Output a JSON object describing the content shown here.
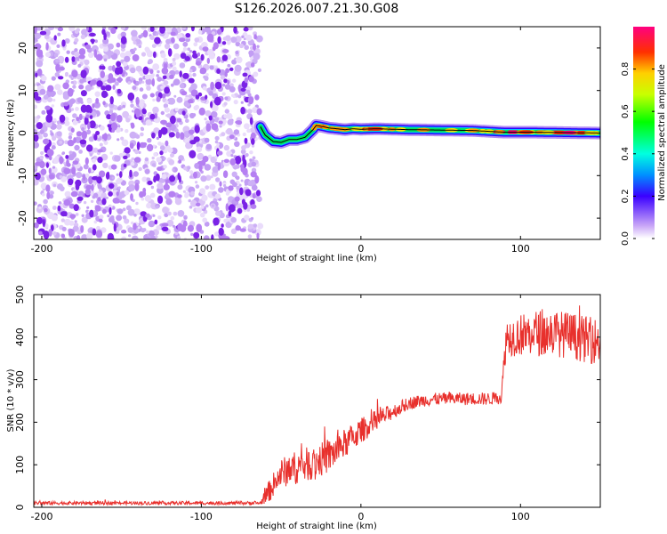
{
  "title": "S126.2026.007.21.30.G08",
  "colors": {
    "snr_line": "#e8302c",
    "signal_ridge": "#000000",
    "noise_dot": "#b580f2",
    "noise_dot_dark": "#7a22e6"
  },
  "chart_data": [
    {
      "type": "heatmap",
      "name": "spectrogram",
      "xlabel": "Height of straight line (km)",
      "ylabel": "Frequency (Hz)",
      "xlim": [
        -205,
        150
      ],
      "ylim": [
        -25,
        25
      ],
      "xticks": [
        -200,
        -100,
        0,
        100
      ],
      "xtick_labels": [
        "-200",
        "-100",
        "0",
        "100"
      ],
      "yticks": [
        -20,
        -10,
        0,
        10,
        20
      ],
      "ytick_labels": [
        "-20",
        "-10",
        "0",
        "10",
        "20"
      ],
      "noise_region_x": [
        -205,
        -63
      ],
      "signal_track": {
        "x": [
          -63,
          -60,
          -55,
          -50,
          -45,
          -40,
          -35,
          -30,
          -28,
          -25,
          -20,
          -15,
          -10,
          -5,
          0,
          10,
          20,
          30,
          50,
          70,
          90,
          110,
          130,
          150
        ],
        "freq": [
          1.5,
          -0.5,
          -2.0,
          -2.2,
          -1.5,
          -1.5,
          -1.0,
          0.8,
          1.8,
          1.6,
          1.2,
          1.0,
          0.8,
          1.0,
          0.9,
          1.0,
          0.9,
          0.8,
          0.7,
          0.6,
          0.2,
          0.2,
          0.1,
          0.0
        ]
      },
      "colorbar": {
        "label": "Normalized spectral amplitude",
        "range": [
          0,
          1
        ],
        "ticks": [
          0.0,
          0.2,
          0.4,
          0.6,
          0.8
        ],
        "tick_labels": [
          "0.0",
          "0.2",
          "0.4",
          "0.6",
          "0.8"
        ]
      }
    },
    {
      "type": "line",
      "name": "snr",
      "xlabel": "Height of straight line (km)",
      "ylabel": "SNR (10 * v/v)",
      "xlim": [
        -205,
        150
      ],
      "ylim": [
        0,
        500
      ],
      "xticks": [
        -200,
        -100,
        0,
        100
      ],
      "xtick_labels": [
        "-200",
        "-100",
        "0",
        "100"
      ],
      "yticks": [
        0,
        100,
        200,
        300,
        400,
        500
      ],
      "ytick_labels": [
        "0",
        "100",
        "200",
        "300",
        "400",
        "500"
      ],
      "series": [
        {
          "name": "SNR",
          "x": [
            -205,
            -100,
            -63,
            -58,
            -50,
            -40,
            -30,
            -20,
            -10,
            0,
            10,
            20,
            30,
            40,
            50,
            60,
            70,
            80,
            88,
            91,
            100,
            110,
            120,
            130,
            140,
            150
          ],
          "y": [
            10,
            10,
            10,
            35,
            80,
            95,
            105,
            120,
            150,
            180,
            205,
            225,
            245,
            252,
            255,
            255,
            255,
            255,
            258,
            400,
            405,
            410,
            410,
            405,
            395,
            390
          ],
          "noise_amp": [
            4,
            4,
            4,
            25,
            35,
            40,
            40,
            40,
            35,
            30,
            25,
            18,
            15,
            15,
            15,
            15,
            15,
            15,
            15,
            45,
            50,
            55,
            55,
            55,
            55,
            55
          ]
        }
      ]
    }
  ]
}
